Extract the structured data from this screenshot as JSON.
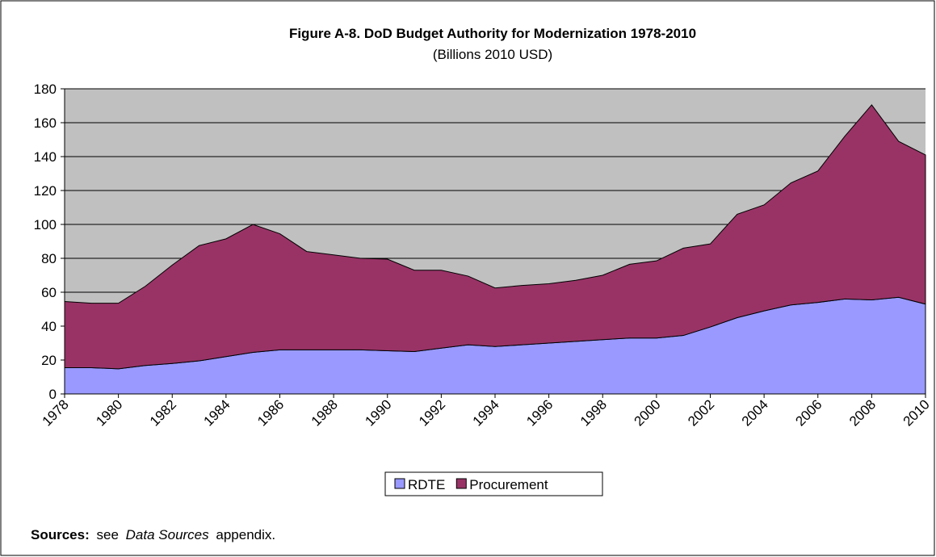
{
  "chart_data": {
    "type": "stacked_area",
    "title": "Figure A-8.  DoD Budget Authority for Modernization 1978-2010",
    "subtitle": "(Billions 2010 USD)",
    "x": [
      1978,
      1979,
      1980,
      1981,
      1982,
      1983,
      1984,
      1985,
      1986,
      1987,
      1988,
      1989,
      1990,
      1991,
      1992,
      1993,
      1994,
      1995,
      1996,
      1997,
      1998,
      1999,
      2000,
      2001,
      2002,
      2003,
      2004,
      2005,
      2006,
      2007,
      2008,
      2009,
      2010
    ],
    "series": [
      {
        "name": "RDTE",
        "color": "#9999ff",
        "values": [
          15.5,
          15.5,
          14.8,
          16.8,
          18,
          19.5,
          22,
          24.5,
          26,
          26,
          26,
          26,
          25.5,
          25,
          27,
          29,
          28,
          29,
          30,
          31,
          32,
          33,
          33,
          34.5,
          39.5,
          45,
          49,
          52.5,
          54,
          56,
          55.5,
          57,
          53
        ]
      },
      {
        "name": "Procurement",
        "color": "#993366",
        "values": [
          39,
          38,
          38.7,
          46.7,
          58,
          68,
          69.5,
          75.5,
          68.5,
          58,
          56,
          54,
          54,
          48,
          46,
          40.5,
          34.5,
          35,
          35,
          36,
          38,
          43.5,
          45.5,
          51.5,
          49,
          61,
          62.5,
          72,
          77.5,
          96,
          115,
          92,
          88
        ]
      }
    ],
    "xlim": [
      1978,
      2010
    ],
    "xticks": [
      1978,
      1980,
      1982,
      1984,
      1986,
      1988,
      1990,
      1992,
      1994,
      1996,
      1998,
      2000,
      2002,
      2004,
      2006,
      2008,
      2010
    ],
    "ylim": [
      0,
      180
    ],
    "yticks": [
      0,
      20,
      40,
      60,
      80,
      100,
      120,
      140,
      160,
      180
    ],
    "grid": true,
    "plot_background": "#c0c0c0",
    "legend": "bottom",
    "sources": {
      "label": "Sources:",
      "pre": "see",
      "italic": "Data Sources",
      "post": "appendix."
    }
  }
}
